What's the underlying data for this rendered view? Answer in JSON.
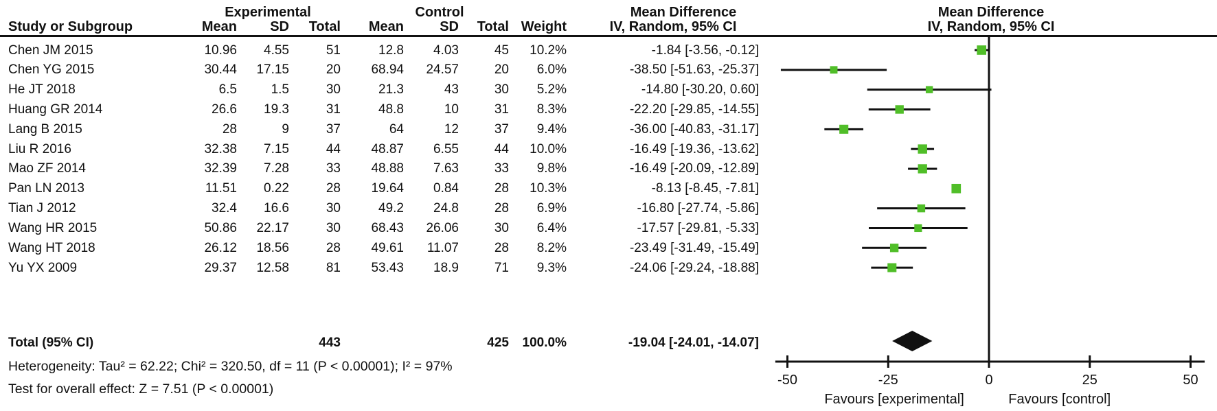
{
  "header": {
    "group_experimental": "Experimental",
    "group_control": "Control",
    "effect_title_numeric": "Mean Difference",
    "effect_sub_numeric": "IV, Random, 95% CI",
    "effect_title_plot": "Mean Difference",
    "effect_sub_plot": "IV, Random, 95% CI",
    "col_study": "Study or Subgroup",
    "col_mean_e": "Mean",
    "col_sd_e": "SD",
    "col_total_e": "Total",
    "col_mean_c": "Mean",
    "col_sd_c": "SD",
    "col_total_c": "Total",
    "col_weight": "Weight"
  },
  "studies": [
    {
      "name": "Chen JM 2015",
      "mean_e": "10.96",
      "sd_e": "4.55",
      "total_e": "51",
      "mean_c": "12.8",
      "sd_c": "4.03",
      "total_c": "45",
      "weight": "10.2%",
      "ci": "-1.84 [-3.56, -0.12]",
      "md": -1.84,
      "lo": -3.56,
      "hi": -0.12,
      "w": 10.2
    },
    {
      "name": "Chen YG 2015",
      "mean_e": "30.44",
      "sd_e": "17.15",
      "total_e": "20",
      "mean_c": "68.94",
      "sd_c": "24.57",
      "total_c": "20",
      "weight": "6.0%",
      "ci": "-38.50 [-51.63, -25.37]",
      "md": -38.5,
      "lo": -51.63,
      "hi": -25.37,
      "w": 6.0
    },
    {
      "name": "He JT 2018",
      "mean_e": "6.5",
      "sd_e": "1.5",
      "total_e": "30",
      "mean_c": "21.3",
      "sd_c": "43",
      "total_c": "30",
      "weight": "5.2%",
      "ci": "-14.80 [-30.20, 0.60]",
      "md": -14.8,
      "lo": -30.2,
      "hi": 0.6,
      "w": 5.2
    },
    {
      "name": "Huang GR 2014",
      "mean_e": "26.6",
      "sd_e": "19.3",
      "total_e": "31",
      "mean_c": "48.8",
      "sd_c": "10",
      "total_c": "31",
      "weight": "8.3%",
      "ci": "-22.20 [-29.85, -14.55]",
      "md": -22.2,
      "lo": -29.85,
      "hi": -14.55,
      "w": 8.3
    },
    {
      "name": "Lang B 2015",
      "mean_e": "28",
      "sd_e": "9",
      "total_e": "37",
      "mean_c": "64",
      "sd_c": "12",
      "total_c": "37",
      "weight": "9.4%",
      "ci": "-36.00 [-40.83, -31.17]",
      "md": -36.0,
      "lo": -40.83,
      "hi": -31.17,
      "w": 9.4
    },
    {
      "name": "Liu R 2016",
      "mean_e": "32.38",
      "sd_e": "7.15",
      "total_e": "44",
      "mean_c": "48.87",
      "sd_c": "6.55",
      "total_c": "44",
      "weight": "10.0%",
      "ci": "-16.49 [-19.36, -13.62]",
      "md": -16.49,
      "lo": -19.36,
      "hi": -13.62,
      "w": 10.0
    },
    {
      "name": "Mao ZF 2014",
      "mean_e": "32.39",
      "sd_e": "7.28",
      "total_e": "33",
      "mean_c": "48.88",
      "sd_c": "7.63",
      "total_c": "33",
      "weight": "9.8%",
      "ci": "-16.49 [-20.09, -12.89]",
      "md": -16.49,
      "lo": -20.09,
      "hi": -12.89,
      "w": 9.8
    },
    {
      "name": "Pan LN 2013",
      "mean_e": "11.51",
      "sd_e": "0.22",
      "total_e": "28",
      "mean_c": "19.64",
      "sd_c": "0.84",
      "total_c": "28",
      "weight": "10.3%",
      "ci": "-8.13 [-8.45, -7.81]",
      "md": -8.13,
      "lo": -8.45,
      "hi": -7.81,
      "w": 10.3
    },
    {
      "name": "Tian J 2012",
      "mean_e": "32.4",
      "sd_e": "16.6",
      "total_e": "30",
      "mean_c": "49.2",
      "sd_c": "24.8",
      "total_c": "28",
      "weight": "6.9%",
      "ci": "-16.80 [-27.74, -5.86]",
      "md": -16.8,
      "lo": -27.74,
      "hi": -5.86,
      "w": 6.9
    },
    {
      "name": "Wang HR 2015",
      "mean_e": "50.86",
      "sd_e": "22.17",
      "total_e": "30",
      "mean_c": "68.43",
      "sd_c": "26.06",
      "total_c": "30",
      "weight": "6.4%",
      "ci": "-17.57 [-29.81, -5.33]",
      "md": -17.57,
      "lo": -29.81,
      "hi": -5.33,
      "w": 6.4
    },
    {
      "name": "Wang HT 2018",
      "mean_e": "26.12",
      "sd_e": "18.56",
      "total_e": "28",
      "mean_c": "49.61",
      "sd_c": "11.07",
      "total_c": "28",
      "weight": "8.2%",
      "ci": "-23.49 [-31.49, -15.49]",
      "md": -23.49,
      "lo": -31.49,
      "hi": -15.49,
      "w": 8.2
    },
    {
      "name": "Yu YX 2009",
      "mean_e": "29.37",
      "sd_e": "12.58",
      "total_e": "81",
      "mean_c": "53.43",
      "sd_c": "18.9",
      "total_c": "71",
      "weight": "9.3%",
      "ci": "-24.06 [-29.24, -18.88]",
      "md": -24.06,
      "lo": -29.24,
      "hi": -18.88,
      "w": 9.3
    }
  ],
  "total": {
    "label": "Total (95% CI)",
    "total_e": "443",
    "total_c": "425",
    "weight": "100.0%",
    "ci": "-19.04 [-24.01, -14.07]",
    "md": -19.04,
    "lo": -24.01,
    "hi": -14.07
  },
  "footer": {
    "heterogeneity": "Heterogeneity: Tau² = 62.22; Chi² = 320.50, df = 11 (P < 0.00001); I² = 97%",
    "overall_effect": "Test for overall effect: Z = 7.51 (P < 0.00001)"
  },
  "axis": {
    "min": -50,
    "max": 50,
    "ticks": [
      "-50",
      "-25",
      "0",
      "25",
      "50"
    ],
    "tick_values": [
      -50,
      -25,
      0,
      25,
      50
    ],
    "favours_left": "Favours [experimental]",
    "favours_right": "Favours [control]"
  },
  "colors": {
    "square_green": "#50BE28",
    "line_black": "#111111",
    "diamond_black": "#111111"
  },
  "chart_data": {
    "type": "scatter",
    "subtype": "forest-plot-mean-difference",
    "title": "Mean Difference  IV, Random, 95% CI",
    "categories": [
      "Chen JM 2015",
      "Chen YG 2015",
      "He JT 2018",
      "Huang GR 2014",
      "Lang B 2015",
      "Liu R 2016",
      "Mao ZF 2014",
      "Pan LN 2013",
      "Tian J 2012",
      "Wang HR 2015",
      "Wang HT 2018",
      "Yu YX 2009"
    ],
    "series": [
      {
        "name": "Mean difference",
        "values": [
          -1.84,
          -38.5,
          -14.8,
          -22.2,
          -36.0,
          -16.49,
          -16.49,
          -8.13,
          -16.8,
          -17.57,
          -23.49,
          -24.06
        ]
      },
      {
        "name": "95% CI lower",
        "values": [
          -3.56,
          -51.63,
          -30.2,
          -29.85,
          -40.83,
          -19.36,
          -20.09,
          -8.45,
          -27.74,
          -29.81,
          -31.49,
          -29.24
        ]
      },
      {
        "name": "95% CI upper",
        "values": [
          -0.12,
          -25.37,
          0.6,
          -14.55,
          -31.17,
          -13.62,
          -12.89,
          -7.81,
          -5.86,
          -5.33,
          -15.49,
          -18.88
        ]
      },
      {
        "name": "Weight %",
        "values": [
          10.2,
          6.0,
          5.2,
          8.3,
          9.4,
          10.0,
          9.8,
          10.3,
          6.9,
          6.4,
          8.2,
          9.3
        ]
      }
    ],
    "pooled": {
      "label": "Total (95% CI)",
      "mean_difference": -19.04,
      "ci_lower": -24.01,
      "ci_upper": -14.07,
      "total_experimental": 443,
      "total_control": 425
    },
    "xlim": [
      -50,
      50
    ],
    "xticks": [
      -50,
      -25,
      0,
      25,
      50
    ],
    "xlabel": "Favours [experimental] / Favours [control]",
    "grid": false,
    "legend_position": "none"
  }
}
